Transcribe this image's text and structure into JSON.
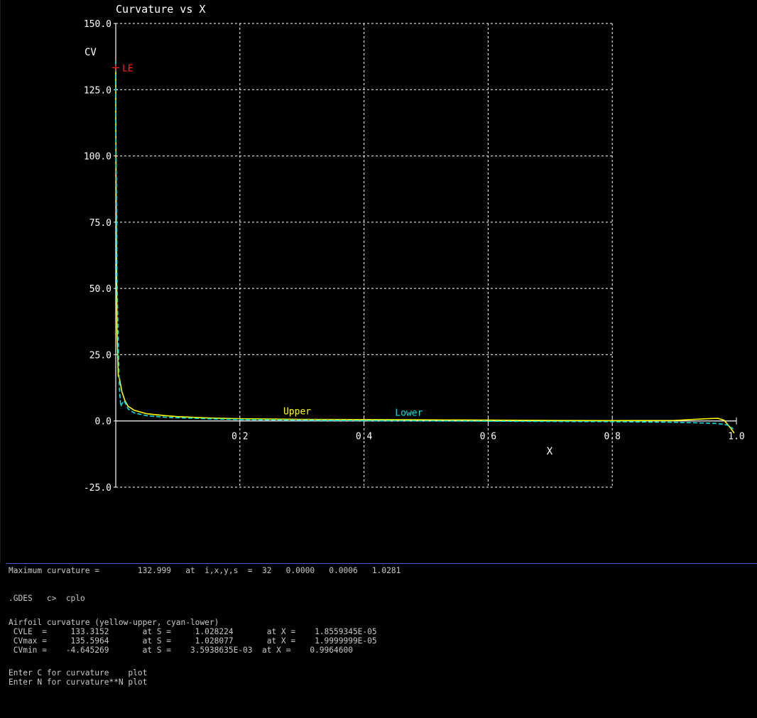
{
  "chart_data": {
    "type": "line",
    "title": "Curvature vs X",
    "xlabel": "X",
    "ylabel": "CV",
    "xlim": [
      0.0,
      1.0
    ],
    "ylim": [
      -25.0,
      150.0
    ],
    "grid": true,
    "x_ticks": [
      0.2,
      0.4,
      0.6,
      0.8,
      1.0
    ],
    "x_tick_labels": [
      "0.2",
      "0.4",
      "0.6",
      "0.8",
      "1.0"
    ],
    "y_ticks": [
      150,
      125,
      100,
      75,
      50,
      25,
      0,
      -25
    ],
    "y_tick_labels": [
      "150.0",
      "125.0",
      "100.0",
      "75.0",
      "50.0",
      "25.0",
      "0.0",
      "-25.0"
    ],
    "annotations": [
      {
        "text": "LE",
        "x": 0.0,
        "y": 133.3,
        "color": "#ff2020"
      }
    ],
    "series": [
      {
        "name": "Upper",
        "color": "#ffff00",
        "label_at": [
          0.27,
          2.5
        ],
        "x": [
          0.0,
          5e-05,
          0.001,
          0.002,
          0.004,
          0.006,
          0.01,
          0.015,
          0.02,
          0.03,
          0.05,
          0.08,
          0.1,
          0.15,
          0.2,
          0.3,
          0.4,
          0.5,
          0.6,
          0.7,
          0.8,
          0.9,
          0.95,
          0.97,
          0.98,
          0.99,
          0.9965
        ],
        "y": [
          133.3,
          120.0,
          70.0,
          35.0,
          17.0,
          16.0,
          11.0,
          7.5,
          5.5,
          4.0,
          2.7,
          2.0,
          1.6,
          1.1,
          0.8,
          0.6,
          0.5,
          0.4,
          0.3,
          0.2,
          0.1,
          0.2,
          0.8,
          1.0,
          0.3,
          -2.5,
          -4.6
        ]
      },
      {
        "name": "Lower",
        "color": "#00e0e0",
        "label_at": [
          0.45,
          2.0
        ],
        "x": [
          0.0,
          2e-05,
          0.001,
          0.002,
          0.004,
          0.006,
          0.008,
          0.012,
          0.015,
          0.02,
          0.03,
          0.05,
          0.08,
          0.1,
          0.15,
          0.2,
          0.3,
          0.4,
          0.5,
          0.6,
          0.7,
          0.8,
          0.9,
          0.95,
          0.97,
          0.985,
          0.995
        ],
        "y": [
          135.6,
          110.0,
          90.0,
          55.0,
          30.0,
          12.0,
          5.5,
          7.5,
          7.0,
          4.5,
          3.0,
          2.0,
          1.4,
          1.2,
          0.8,
          0.5,
          0.3,
          0.1,
          0.0,
          -0.1,
          -0.2,
          -0.3,
          -0.5,
          -0.8,
          -1.0,
          -1.5,
          -3.0
        ]
      }
    ]
  },
  "console": {
    "lines": [
      "Maximum curvature =        132.999   at  i,x,y,s  =  32   0.0000   0.0006   1.0281",
      "",
      ".GDES   c>  cplo",
      "",
      "Airfoil curvature (yellow-upper, cyan-lower)",
      " CVLE  =     133.3152       at S =     1.028224       at X =    1.8559345E-05",
      " CVmax =     135.5964       at S =     1.028077       at X =    1.9999999E-05",
      " CVmin =    -4.645269       at S =    3.5938635E-03  at X =    0.9964600",
      "",
      "Enter C for curvature    plot",
      "Enter N for curvature**N plot"
    ]
  },
  "colors": {
    "background": "#000000",
    "axis": "#ffffff",
    "grid": "#ffffff",
    "upper": "#ffff00",
    "lower": "#00e0e0",
    "le_marker": "#ff2020",
    "console_text": "#c8c8c8",
    "divider": "#3a5fcd"
  }
}
